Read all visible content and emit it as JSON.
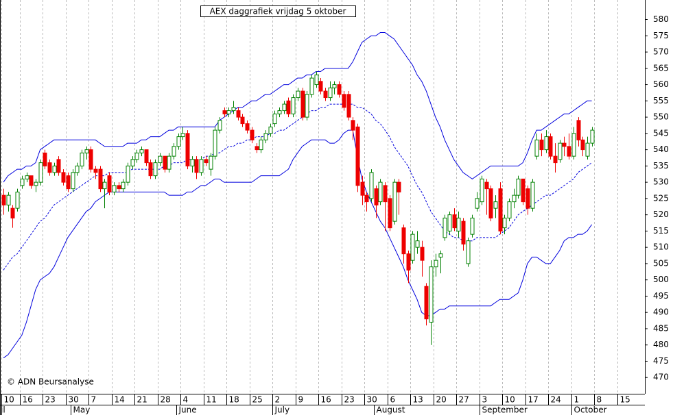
{
  "chart_data": {
    "type": "candlestick",
    "title": "AEX daggrafiek vrijdag 5 oktober",
    "copyright": "© ADN Beursanalyse",
    "categories": [
      "10",
      null,
      null,
      null,
      "16",
      null,
      null,
      null,
      null,
      "23",
      null,
      null,
      null,
      null,
      "30",
      null,
      null,
      null,
      null,
      "7",
      null,
      null,
      null,
      null,
      "14",
      null,
      null,
      null,
      null,
      "21",
      null,
      null,
      null,
      null,
      "28",
      null,
      null,
      null,
      null,
      "4",
      null,
      null,
      null,
      null,
      "11",
      null,
      null,
      null,
      null,
      "18",
      null,
      null,
      null,
      null,
      "25",
      null,
      null,
      null,
      null,
      "2",
      null,
      null,
      null,
      null,
      "9",
      null,
      null,
      null,
      null,
      "16",
      null,
      null,
      null,
      null,
      "23",
      null,
      null,
      null,
      null,
      "30",
      null,
      null,
      null,
      null,
      "6",
      null,
      null,
      null,
      null,
      "13",
      null,
      null,
      null,
      null,
      "20",
      null,
      null,
      null,
      null,
      "27",
      null,
      null,
      null,
      null,
      "3",
      null,
      null,
      null,
      null,
      "10",
      null,
      null,
      null,
      null,
      "17",
      null,
      null,
      null,
      null,
      "24",
      null,
      null,
      null,
      null,
      "1",
      null,
      null,
      null,
      null,
      "8",
      null,
      null,
      null,
      null,
      "15",
      null,
      null,
      null,
      null
    ],
    "month_categories": [
      "il",
      null,
      null,
      null,
      null,
      null,
      null,
      null,
      null,
      null,
      null,
      null,
      null,
      null,
      null,
      "May",
      null,
      null,
      null,
      null,
      null,
      null,
      null,
      null,
      null,
      null,
      null,
      null,
      null,
      null,
      null,
      null,
      null,
      null,
      null,
      null,
      null,
      null,
      "June",
      null,
      null,
      null,
      null,
      null,
      null,
      null,
      null,
      null,
      null,
      null,
      null,
      null,
      null,
      null,
      null,
      null,
      null,
      null,
      null,
      "July",
      null,
      null,
      null,
      null,
      null,
      null,
      null,
      null,
      null,
      null,
      null,
      null,
      null,
      null,
      null,
      null,
      null,
      null,
      null,
      null,
      null,
      "August",
      null,
      null,
      null,
      null,
      null,
      null,
      null,
      null,
      null,
      null,
      null,
      null,
      null,
      null,
      null,
      null,
      null,
      null,
      null,
      null,
      null,
      null,
      "September",
      null,
      null,
      null,
      null,
      null,
      null,
      null,
      null,
      null,
      null,
      null,
      null,
      null,
      null,
      null,
      null,
      null,
      null,
      null,
      "October",
      null,
      null,
      null,
      null,
      null,
      null,
      null,
      null,
      null,
      null,
      null,
      null,
      null,
      null
    ],
    "open": [
      526,
      523,
      522,
      522,
      529,
      531,
      532,
      529,
      530,
      539,
      536,
      533,
      537,
      533,
      532,
      528,
      533,
      535,
      539,
      540,
      534,
      534,
      528,
      532,
      527,
      529,
      528,
      530,
      535,
      537,
      539,
      540,
      536,
      532,
      536,
      538,
      534,
      538,
      541,
      544,
      545,
      535,
      537,
      533,
      537,
      534,
      538,
      546,
      552,
      551,
      552,
      552,
      550,
      548,
      546,
      541,
      540,
      543,
      545,
      548,
      551,
      552,
      555,
      551,
      556,
      558,
      550,
      557,
      560,
      561,
      558,
      556,
      559,
      560,
      557,
      557,
      549,
      547,
      530,
      526,
      525,
      528,
      524,
      529,
      525,
      518,
      530,
      516,
      508,
      506,
      510,
      510,
      498,
      487,
      504,
      507,
      513,
      515,
      520,
      515,
      518,
      505,
      514,
      522,
      524,
      530,
      528,
      522,
      528,
      516,
      519,
      524,
      526,
      531,
      528,
      522,
      538,
      543,
      540,
      544,
      538,
      537,
      542,
      541,
      538,
      549,
      543,
      538,
      542,
      null,
      null,
      null,
      null,
      null,
      null,
      null,
      null,
      null,
      null
    ],
    "high": [
      528,
      527,
      523,
      528,
      532,
      533,
      532,
      531,
      537,
      540,
      537,
      536,
      538,
      534,
      533,
      534,
      536,
      540,
      541,
      541,
      535,
      535,
      531,
      533,
      530,
      530,
      531,
      536,
      538,
      540,
      541,
      540,
      537,
      537,
      539,
      538,
      539,
      542,
      545,
      547,
      546,
      538,
      538,
      538,
      538,
      539,
      547,
      550,
      553,
      553,
      555,
      553,
      551,
      549,
      547,
      542,
      544,
      546,
      548,
      552,
      553,
      555,
      556,
      557,
      559,
      559,
      558,
      563,
      564,
      562,
      559,
      561,
      561,
      561,
      558,
      558,
      550,
      548,
      532,
      527,
      534,
      529,
      531,
      530,
      526,
      531,
      531,
      517,
      509,
      515,
      515,
      512,
      499,
      506,
      508,
      509,
      520,
      521,
      522,
      521,
      519,
      513,
      520,
      527,
      532,
      531,
      529,
      526,
      530,
      520,
      525,
      528,
      532,
      531,
      529,
      531,
      545,
      545,
      546,
      545,
      542,
      543,
      544,
      545,
      547,
      550,
      544,
      544,
      547,
      null,
      null,
      null,
      null,
      null,
      null,
      null,
      null,
      null,
      null
    ],
    "low": [
      520,
      521,
      516,
      521,
      528,
      530,
      528,
      527,
      529,
      534,
      532,
      532,
      532,
      529,
      527,
      527,
      532,
      534,
      537,
      533,
      531,
      527,
      522,
      526,
      526,
      527,
      527,
      529,
      534,
      536,
      538,
      535,
      531,
      531,
      535,
      533,
      533,
      537,
      540,
      543,
      534,
      533,
      531,
      532,
      535,
      532,
      537,
      545,
      550,
      550,
      551,
      549,
      547,
      545,
      542,
      539,
      539,
      542,
      544,
      547,
      550,
      551,
      550,
      550,
      555,
      549,
      549,
      556,
      559,
      557,
      555,
      555,
      557,
      556,
      552,
      549,
      543,
      527,
      523,
      521,
      524,
      519,
      523,
      515,
      515,
      517,
      520,
      505,
      499,
      505,
      508,
      501,
      486,
      480,
      501,
      502,
      512,
      514,
      515,
      513,
      509,
      504,
      513,
      521,
      523,
      520,
      518,
      519,
      514,
      514,
      518,
      522,
      525,
      523,
      520,
      521,
      537,
      538,
      539,
      537,
      533,
      536,
      538,
      537,
      537,
      541,
      538,
      537,
      541,
      null,
      null,
      null,
      null,
      null,
      null,
      null,
      null,
      null,
      null
    ],
    "close": [
      523,
      526,
      519,
      527,
      531,
      532,
      529,
      530,
      536,
      535,
      533,
      535,
      533,
      530,
      528,
      533,
      535,
      539,
      540,
      534,
      533,
      528,
      530,
      527,
      529,
      528,
      530,
      535,
      537,
      539,
      540,
      536,
      532,
      536,
      538,
      534,
      538,
      541,
      544,
      545,
      535,
      537,
      533,
      537,
      536,
      538,
      546,
      549,
      551,
      552,
      553,
      550,
      548,
      546,
      543,
      540,
      543,
      545,
      547,
      551,
      552,
      554,
      551,
      556,
      558,
      550,
      557,
      562,
      563,
      558,
      556,
      559,
      560,
      557,
      553,
      550,
      546,
      529,
      526,
      524,
      533,
      523,
      530,
      524,
      516,
      530,
      527,
      508,
      503,
      514,
      512,
      506,
      488,
      504,
      506,
      508,
      519,
      520,
      516,
      519,
      511,
      512,
      519,
      525,
      531,
      528,
      519,
      524,
      515,
      519,
      524,
      526,
      531,
      524,
      522,
      530,
      543,
      540,
      544,
      538,
      536,
      542,
      541,
      538,
      545,
      543,
      540,
      542,
      546,
      null,
      null,
      null,
      null,
      null,
      null,
      null,
      null,
      null,
      null
    ],
    "up_color": "#008000",
    "down_color": "#ee0000",
    "bands": [
      {
        "style": "solid",
        "color": "#0000dd",
        "values": [
          530,
          532,
          533,
          534,
          534,
          535,
          535,
          536,
          540,
          541,
          542,
          543,
          543,
          543,
          543,
          543,
          543,
          543,
          543,
          543,
          543,
          542,
          541,
          541,
          541,
          541,
          541,
          542,
          542,
          542,
          543,
          543,
          544,
          544,
          544,
          545,
          546,
          546,
          547,
          547,
          547,
          547,
          547,
          547,
          547,
          547,
          547,
          549,
          550,
          551,
          552,
          553,
          553,
          554,
          555,
          555,
          556,
          557,
          557,
          558,
          559,
          560,
          560,
          561,
          562,
          562,
          563,
          563,
          564,
          564,
          565,
          565,
          565,
          565,
          565,
          565,
          567,
          570,
          573,
          574,
          575,
          575,
          576,
          576,
          575,
          574,
          572,
          570,
          568,
          566,
          563,
          561,
          558,
          554,
          550,
          547,
          543,
          540,
          537,
          535,
          533,
          532,
          531,
          532,
          533,
          534,
          535,
          535,
          535,
          535,
          535,
          535,
          535,
          536,
          539,
          543,
          546,
          546,
          547,
          548,
          549,
          550,
          551,
          551,
          552,
          553,
          554,
          555,
          555,
          null,
          null,
          null,
          null,
          null,
          null,
          null,
          null,
          null,
          null
        ]
      },
      {
        "style": "dashed",
        "color": "#0000dd",
        "values": [
          503,
          505,
          507,
          508,
          510,
          512,
          514,
          516,
          518,
          519,
          521,
          523,
          524,
          525,
          526,
          527,
          528,
          529,
          530,
          531,
          532,
          532,
          532,
          533,
          533,
          533,
          533,
          533,
          534,
          534,
          534,
          534,
          534,
          534,
          534,
          535,
          535,
          536,
          536,
          536,
          537,
          537,
          537,
          537,
          538,
          538,
          539,
          539,
          540,
          541,
          541,
          542,
          542,
          543,
          543,
          544,
          544,
          544,
          545,
          545,
          546,
          546,
          547,
          548,
          549,
          550,
          551,
          552,
          552,
          553,
          553,
          554,
          554,
          554,
          554,
          554,
          554,
          553,
          553,
          552,
          551,
          549,
          548,
          546,
          544,
          541,
          539,
          537,
          535,
          532,
          529,
          527,
          524,
          521,
          519,
          517,
          515,
          514,
          513,
          513,
          512,
          512,
          512,
          513,
          513,
          513,
          513,
          513,
          514,
          515,
          516,
          518,
          520,
          521,
          522,
          523,
          524,
          525,
          526,
          526,
          527,
          528,
          529,
          530,
          531,
          533,
          534,
          535,
          536,
          null,
          null,
          null,
          null,
          null,
          null,
          null,
          null,
          null,
          null
        ]
      },
      {
        "style": "solid",
        "color": "#0000dd",
        "values": [
          476,
          477,
          479,
          481,
          483,
          487,
          492,
          497,
          500,
          501,
          502,
          504,
          507,
          510,
          513,
          515,
          517,
          519,
          521,
          522,
          524,
          525,
          526,
          527,
          527,
          527,
          527,
          527,
          527,
          527,
          527,
          527,
          527,
          527,
          527,
          527,
          526,
          526,
          526,
          526,
          527,
          527,
          528,
          529,
          529,
          530,
          531,
          531,
          530,
          530,
          530,
          530,
          530,
          530,
          530,
          531,
          532,
          532,
          532,
          532,
          532,
          533,
          534,
          537,
          539,
          541,
          542,
          543,
          543,
          543,
          543,
          542,
          542,
          543,
          545,
          546,
          546,
          538,
          531,
          527,
          524,
          521,
          518,
          516,
          513,
          510,
          507,
          504,
          500,
          497,
          494,
          490,
          489,
          489,
          490,
          491,
          491,
          492,
          492,
          492,
          492,
          492,
          492,
          492,
          492,
          492,
          492,
          493,
          494,
          494,
          494,
          495,
          496,
          500,
          505,
          507,
          507,
          506,
          505,
          505,
          507,
          509,
          512,
          513,
          513,
          514,
          514,
          515,
          517,
          null,
          null,
          null,
          null,
          null,
          null,
          null,
          null,
          null,
          null
        ]
      }
    ],
    "ylim": [
      465,
      586
    ],
    "yticks": [
      470,
      475,
      480,
      485,
      490,
      495,
      500,
      505,
      510,
      515,
      520,
      525,
      530,
      535,
      540,
      545,
      550,
      555,
      560,
      565,
      570,
      575,
      580
    ],
    "grid": true
  }
}
